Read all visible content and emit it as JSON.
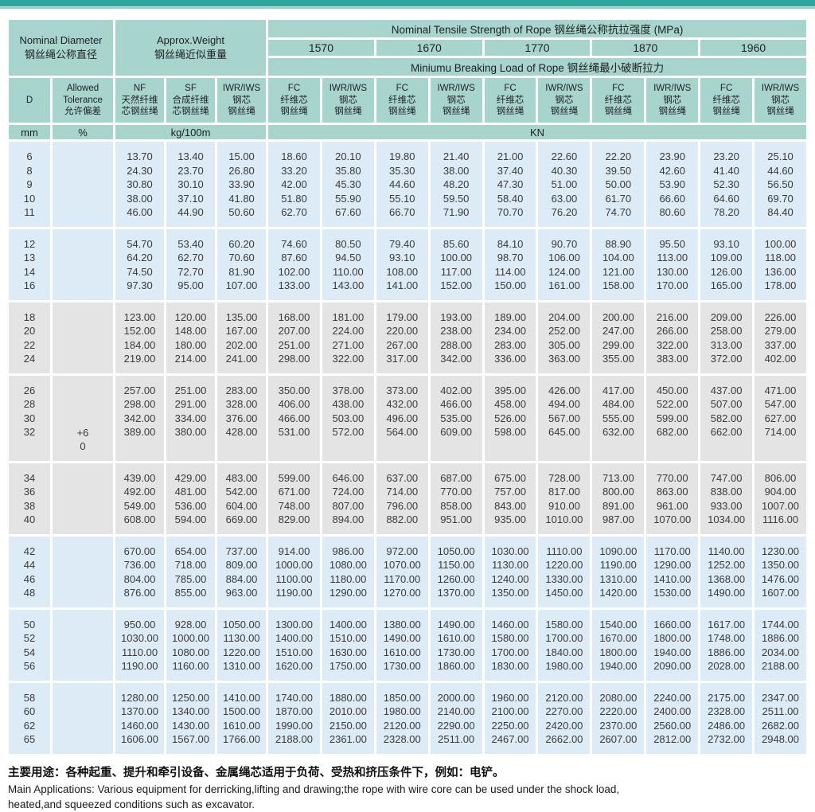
{
  "accent_colors": {
    "topbar": "#2da69b",
    "header_teal": "#a7d5ce",
    "row_blue": "#dcebf5",
    "row_gray": "#e4e4e4"
  },
  "table": {
    "titles": {
      "diameter_en": "Nominal Diameter",
      "diameter_cn": "钢丝绳公称直径",
      "weight_en": "Approx.Weight",
      "weight_cn": "钢丝绳近似重量",
      "strength": "Nominal Tensile Strength of Rope 钢丝绳公称抗拉强度 (MPa)",
      "breaking_load": "Miniumu Breaking Load of Rope 钢丝绳最小破断拉力"
    },
    "strength_grades": [
      "1570",
      "1670",
      "1770",
      "1870",
      "1960"
    ],
    "cols": {
      "d": "D",
      "tolerance": [
        "Allowed",
        "Tolerance",
        "允许偏差"
      ],
      "nf": [
        "NF",
        "天然纤维",
        "芯钢丝绳"
      ],
      "sf": [
        "SF",
        "合成纤维",
        "芯钢丝绳"
      ],
      "iwr": [
        "IWR/IWS",
        "钢芯",
        "钢丝绳"
      ],
      "fc": [
        "FC",
        "纤维芯",
        "钢丝绳"
      ]
    },
    "units": {
      "d": "mm",
      "tolerance": "%",
      "weight": "kg/100m",
      "load": "KN"
    },
    "groups": [
      {
        "shade": "blue",
        "rows": [
          [
            "6",
            "13.70",
            "13.40",
            "15.00",
            "18.60",
            "20.10",
            "19.80",
            "21.40",
            "21.00",
            "22.60",
            "22.20",
            "23.90",
            "23.20",
            "25.10"
          ],
          [
            "8",
            "24.30",
            "23.70",
            "26.80",
            "33.20",
            "35.80",
            "35.30",
            "38.00",
            "37.40",
            "40.30",
            "39.50",
            "42.60",
            "41.40",
            "44.60"
          ],
          [
            "9",
            "30.80",
            "30.10",
            "33.90",
            "42.00",
            "45.30",
            "44.60",
            "48.20",
            "47.30",
            "51.00",
            "50.00",
            "53.90",
            "52.30",
            "56.50"
          ],
          [
            "10",
            "38.00",
            "37.10",
            "41.80",
            "51.80",
            "55.90",
            "55.10",
            "59.50",
            "58.40",
            "63.00",
            "61.70",
            "66.60",
            "64.60",
            "69.70"
          ],
          [
            "11",
            "46.00",
            "44.90",
            "50.60",
            "62.70",
            "67.60",
            "66.70",
            "71.90",
            "70.70",
            "76.20",
            "74.70",
            "80.60",
            "78.20",
            "84.40"
          ]
        ]
      },
      {
        "shade": "blue",
        "rows": [
          [
            "12",
            "54.70",
            "53.40",
            "60.20",
            "74.60",
            "80.50",
            "79.40",
            "85.60",
            "84.10",
            "90.70",
            "88.90",
            "95.50",
            "93.10",
            "100.00"
          ],
          [
            "13",
            "64.20",
            "62.70",
            "70.60",
            "87.60",
            "94.50",
            "93.10",
            "100.00",
            "98.70",
            "106.00",
            "104.00",
            "113.00",
            "109.00",
            "118.00"
          ],
          [
            "14",
            "74.50",
            "72.70",
            "81.90",
            "102.00",
            "110.00",
            "108.00",
            "117.00",
            "114.00",
            "124.00",
            "121.00",
            "130.00",
            "126.00",
            "136.00"
          ],
          [
            "16",
            "97.30",
            "95.00",
            "107.00",
            "133.00",
            "143.00",
            "141.00",
            "152.00",
            "150.00",
            "161.00",
            "158.00",
            "170.00",
            "165.00",
            "178.00"
          ]
        ]
      },
      {
        "shade": "gray",
        "rows": [
          [
            "18",
            "123.00",
            "120.00",
            "135.00",
            "168.00",
            "181.00",
            "179.00",
            "193.00",
            "189.00",
            "204.00",
            "200.00",
            "216.00",
            "209.00",
            "226.00"
          ],
          [
            "20",
            "152.00",
            "148.00",
            "167.00",
            "207.00",
            "224.00",
            "220.00",
            "238.00",
            "234.00",
            "252.00",
            "247.00",
            "266.00",
            "258.00",
            "279.00"
          ],
          [
            "22",
            "184.00",
            "180.00",
            "202.00",
            "251.00",
            "271.00",
            "267.00",
            "288.00",
            "283.00",
            "305.00",
            "299.00",
            "322.00",
            "313.00",
            "337.00"
          ],
          [
            "24",
            "219.00",
            "214.00",
            "241.00",
            "298.00",
            "322.00",
            "317.00",
            "342.00",
            "336.00",
            "363.00",
            "355.00",
            "383.00",
            "372.00",
            "402.00"
          ]
        ]
      },
      {
        "shade": "gray",
        "tall": true,
        "tolerance": [
          "+6",
          "0"
        ],
        "rows": [
          [
            "26",
            "257.00",
            "251.00",
            "283.00",
            "350.00",
            "378.00",
            "373.00",
            "402.00",
            "395.00",
            "426.00",
            "417.00",
            "450.00",
            "437.00",
            "471.00"
          ],
          [
            "28",
            "298.00",
            "291.00",
            "328.00",
            "406.00",
            "438.00",
            "432.00",
            "466.00",
            "458.00",
            "494.00",
            "484.00",
            "522.00",
            "507.00",
            "547.00"
          ],
          [
            "30",
            "342.00",
            "334.00",
            "376.00",
            "466.00",
            "503.00",
            "496.00",
            "535.00",
            "526.00",
            "567.00",
            "555.00",
            "599.00",
            "582.00",
            "627.00"
          ],
          [
            "32",
            "389.00",
            "380.00",
            "428.00",
            "531.00",
            "572.00",
            "564.00",
            "609.00",
            "598.00",
            "645.00",
            "632.00",
            "682.00",
            "662.00",
            "714.00"
          ]
        ]
      },
      {
        "shade": "gray",
        "rows": [
          [
            "34",
            "439.00",
            "429.00",
            "483.00",
            "599.00",
            "646.00",
            "637.00",
            "687.00",
            "675.00",
            "728.00",
            "713.00",
            "770.00",
            "747.00",
            "806.00"
          ],
          [
            "36",
            "492.00",
            "481.00",
            "542.00",
            "671.00",
            "724.00",
            "714.00",
            "770.00",
            "757.00",
            "817.00",
            "800.00",
            "863.00",
            "838.00",
            "904.00"
          ],
          [
            "38",
            "549.00",
            "536.00",
            "604.00",
            "748.00",
            "807.00",
            "796.00",
            "858.00",
            "843.00",
            "910.00",
            "891.00",
            "961.00",
            "933.00",
            "1007.00"
          ],
          [
            "40",
            "608.00",
            "594.00",
            "669.00",
            "829.00",
            "894.00",
            "882.00",
            "951.00",
            "935.00",
            "1010.00",
            "987.00",
            "1070.00",
            "1034.00",
            "1116.00"
          ]
        ]
      },
      {
        "shade": "blue",
        "rows": [
          [
            "42",
            "670.00",
            "654.00",
            "737.00",
            "914.00",
            "986.00",
            "972.00",
            "1050.00",
            "1030.00",
            "1110.00",
            "1090.00",
            "1170.00",
            "1140.00",
            "1230.00"
          ],
          [
            "44",
            "736.00",
            "718.00",
            "809.00",
            "1000.00",
            "1080.00",
            "1070.00",
            "1150.00",
            "1130.00",
            "1220.00",
            "1190.00",
            "1290.00",
            "1252.00",
            "1350.00"
          ],
          [
            "46",
            "804.00",
            "785.00",
            "884.00",
            "1100.00",
            "1180.00",
            "1170.00",
            "1260.00",
            "1240.00",
            "1330.00",
            "1310.00",
            "1410.00",
            "1368.00",
            "1476.00"
          ],
          [
            "48",
            "876.00",
            "855.00",
            "963.00",
            "1190.00",
            "1290.00",
            "1270.00",
            "1370.00",
            "1350.00",
            "1450.00",
            "1420.00",
            "1530.00",
            "1490.00",
            "1607.00"
          ]
        ]
      },
      {
        "shade": "blue",
        "rows": [
          [
            "50",
            "950.00",
            "928.00",
            "1050.00",
            "1300.00",
            "1400.00",
            "1380.00",
            "1490.00",
            "1460.00",
            "1580.00",
            "1540.00",
            "1660.00",
            "1617.00",
            "1744.00"
          ],
          [
            "52",
            "1030.00",
            "1000.00",
            "1130.00",
            "1400.00",
            "1510.00",
            "1490.00",
            "1610.00",
            "1580.00",
            "1700.00",
            "1670.00",
            "1800.00",
            "1748.00",
            "1886.00"
          ],
          [
            "54",
            "1110.00",
            "1080.00",
            "1220.00",
            "1510.00",
            "1630.00",
            "1610.00",
            "1730.00",
            "1700.00",
            "1840.00",
            "1800.00",
            "1940.00",
            "1886.00",
            "2034.00"
          ],
          [
            "56",
            "1190.00",
            "1160.00",
            "1310.00",
            "1620.00",
            "1750.00",
            "1730.00",
            "1860.00",
            "1830.00",
            "1980.00",
            "1940.00",
            "2090.00",
            "2028.00",
            "2188.00"
          ]
        ]
      },
      {
        "shade": "blue",
        "rows": [
          [
            "58",
            "1280.00",
            "1250.00",
            "1410.00",
            "1740.00",
            "1880.00",
            "1850.00",
            "2000.00",
            "1960.00",
            "2120.00",
            "2080.00",
            "2240.00",
            "2175.00",
            "2347.00"
          ],
          [
            "60",
            "1370.00",
            "1340.00",
            "1500.00",
            "1870.00",
            "2010.00",
            "1980.00",
            "2140.00",
            "2100.00",
            "2270.00",
            "2220.00",
            "2400.00",
            "2328.00",
            "2511.00"
          ],
          [
            "62",
            "1460.00",
            "1430.00",
            "1610.00",
            "1990.00",
            "2150.00",
            "2120.00",
            "2290.00",
            "2250.00",
            "2420.00",
            "2370.00",
            "2560.00",
            "2486.00",
            "2682.00"
          ],
          [
            "65",
            "1606.00",
            "1567.00",
            "1766.00",
            "2188.00",
            "2361.00",
            "2328.00",
            "2511.00",
            "2467.00",
            "2662.00",
            "2607.00",
            "2812.00",
            "2732.00",
            "2948.00"
          ]
        ]
      }
    ]
  },
  "footer": {
    "cn": "主要用途：各种起重、提升和牵引设备、金属绳芯适用于负荷、受热和挤压条件下，例如：电铲。",
    "en1": "Main Applications: Various equipment for derricking,lifting and drawing;the rope with wire core can be used under the shock load,",
    "en2": "heated,and squeezed conditions such as excavator."
  }
}
